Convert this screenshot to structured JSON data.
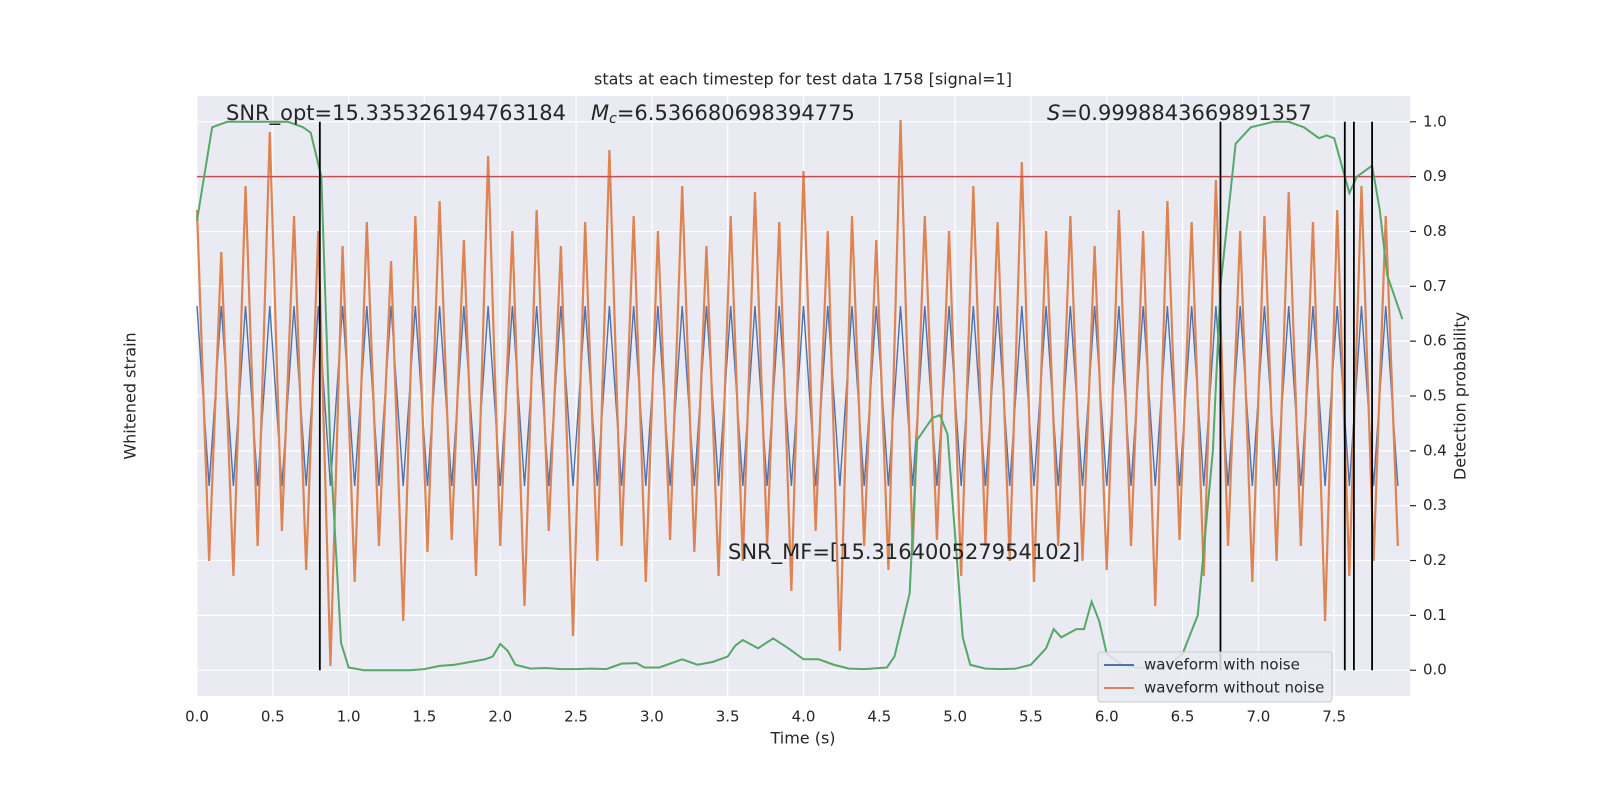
{
  "chart_data": {
    "type": "line",
    "title": "stats at each timestep for test data 1758 [signal=1]",
    "xlabel": "Time (s)",
    "ylabel": "Whitened strain",
    "y2label": "Detection probability",
    "annotations": [
      {
        "text": "SNR_opt=15.335326194763184"
      },
      {
        "symbol": "M",
        "subscript": "c",
        "text": "=6.536680698394775"
      },
      {
        "symbol": "S",
        "text": "=0.9998843669891357"
      },
      {
        "text": "SNR_MF=[15.316400527954102]"
      }
    ],
    "xlim": [
      0,
      8
    ],
    "xticks": [
      {
        "value": 0,
        "label": "0.0"
      },
      0.5,
      {
        "value": 1,
        "label": "1.0"
      },
      1.5,
      {
        "value": 2,
        "label": "2.0"
      },
      2.5,
      {
        "value": 3,
        "label": "3.0"
      },
      3.5,
      {
        "value": 4,
        "label": "4.0"
      },
      4.5,
      {
        "value": 5,
        "label": "5.0"
      },
      5.5,
      {
        "value": 6,
        "label": "6.0"
      },
      6.5,
      {
        "value": 7,
        "label": "7.0"
      },
      7.5
    ],
    "ylim": [
      -1,
      1
    ],
    "y2lim": [
      -0.047,
      1.047
    ],
    "y2ticks": [
      {
        "value": 0,
        "label": "0.0"
      },
      0.1,
      0.2,
      0.3,
      0.4,
      0.5,
      0.6,
      0.7,
      0.8,
      0.9,
      {
        "value": 1,
        "label": "1.0"
      }
    ],
    "grid": true,
    "legend": "lower right",
    "waveform_x": [
      0,
      0.08,
      0.16,
      0.24,
      0.32,
      0.4,
      0.48,
      0.56,
      0.64,
      0.72,
      0.8,
      0.88,
      0.96,
      1.04,
      1.12,
      1.2,
      1.28,
      1.36,
      1.44,
      1.52,
      1.6,
      1.68,
      1.76,
      1.84,
      1.92,
      2,
      2.08,
      2.16,
      2.24,
      2.32,
      2.4,
      2.48,
      2.56,
      2.64,
      2.72,
      2.8,
      2.88,
      2.96,
      3.04,
      3.12,
      3.2,
      3.28,
      3.36,
      3.44,
      3.52,
      3.6,
      3.68,
      3.76,
      3.84,
      3.92,
      4,
      4.08,
      4.16,
      4.24,
      4.32,
      4.4,
      4.48,
      4.56,
      4.64,
      4.72,
      4.8,
      4.88,
      4.96,
      5.04,
      5.12,
      5.2,
      5.28,
      5.36,
      5.44,
      5.52,
      5.6,
      5.68,
      5.76,
      5.84,
      5.92,
      6,
      6.08,
      6.16,
      6.24,
      6.32,
      6.4,
      6.48,
      6.56,
      6.64,
      6.72,
      6.8,
      6.88,
      6.96,
      7.04,
      7.12,
      7.2,
      7.28,
      7.36,
      7.44,
      7.52,
      7.6,
      7.68,
      7.76,
      7.84,
      7.92
    ],
    "series": [
      {
        "name": "waveform with noise",
        "color": "#4c72b0",
        "values": [
          0.3,
          -0.3,
          0.3,
          -0.3,
          0.3,
          -0.3,
          0.3,
          -0.3,
          0.3,
          -0.3,
          0.3,
          -0.3,
          0.3,
          -0.3,
          0.3,
          -0.3,
          0.3,
          -0.3,
          0.3,
          -0.3,
          0.3,
          -0.3,
          0.3,
          -0.3,
          0.3,
          -0.3,
          0.3,
          -0.3,
          0.3,
          -0.3,
          0.3,
          -0.3,
          0.3,
          -0.3,
          0.3,
          -0.3,
          0.3,
          -0.3,
          0.3,
          -0.3,
          0.3,
          -0.3,
          0.3,
          -0.3,
          0.3,
          -0.3,
          0.3,
          -0.3,
          0.3,
          -0.3,
          0.3,
          -0.3,
          0.3,
          -0.3,
          0.3,
          -0.3,
          0.3,
          -0.3,
          0.3,
          -0.3,
          0.3,
          -0.3,
          0.3,
          -0.3,
          0.3,
          -0.3,
          0.3,
          -0.3,
          0.3,
          -0.3,
          0.3,
          -0.3,
          0.3,
          -0.3,
          0.3,
          -0.3,
          0.3,
          -0.3,
          0.3,
          -0.3,
          0.3,
          -0.3,
          0.3,
          -0.3,
          0.3,
          -0.3,
          0.3,
          -0.3,
          0.3,
          -0.3,
          0.3,
          -0.3,
          0.3,
          -0.3,
          0.3,
          -0.3,
          0.3,
          -0.3,
          0.3,
          -0.3
        ]
      },
      {
        "name": "waveform without noise",
        "color": "#dd8452",
        "values": [
          0.62,
          -0.55,
          0.48,
          -0.6,
          0.7,
          -0.5,
          0.88,
          -0.45,
          0.6,
          -0.58,
          0.55,
          -0.9,
          0.5,
          -0.62,
          0.58,
          -0.5,
          0.45,
          -0.75,
          0.6,
          -0.52,
          0.65,
          -0.48,
          0.52,
          -0.6,
          0.8,
          -0.5,
          0.55,
          -0.7,
          0.62,
          -0.45,
          0.5,
          -0.8,
          0.58,
          -0.55,
          0.82,
          -0.5,
          0.6,
          -0.62,
          0.55,
          -0.48,
          0.7,
          -0.52,
          0.5,
          -0.6,
          0.6,
          -0.55,
          0.68,
          -0.5,
          0.58,
          -0.65,
          0.75,
          -0.45,
          0.55,
          -0.85,
          0.6,
          -0.5,
          0.52,
          -0.58,
          0.92,
          -0.52,
          0.6,
          -0.48,
          0.55,
          -0.6,
          0.7,
          -0.5,
          0.58,
          -0.55,
          0.78,
          -0.62,
          0.55,
          -0.5,
          0.6,
          -0.55,
          0.5,
          -0.58,
          0.62,
          -0.5,
          0.55,
          -0.7,
          0.65,
          -0.48,
          0.58,
          -0.6,
          0.72,
          -0.5,
          0.55,
          -0.62,
          0.6,
          -0.55,
          0.68,
          -0.5,
          0.58,
          -0.75,
          0.62,
          -0.6,
          0.7,
          -0.55,
          0.6,
          -0.5
        ]
      }
    ],
    "probability": {
      "color": "#55a868",
      "axis": "y2",
      "x": [
        0,
        0.1,
        0.2,
        0.3,
        0.4,
        0.5,
        0.6,
        0.7,
        0.75,
        0.82,
        0.88,
        0.95,
        1,
        1.1,
        1.2,
        1.3,
        1.4,
        1.5,
        1.6,
        1.7,
        1.8,
        1.9,
        1.95,
        2,
        2.05,
        2.1,
        2.2,
        2.3,
        2.4,
        2.5,
        2.6,
        2.7,
        2.8,
        2.9,
        2.95,
        3.05,
        3.2,
        3.3,
        3.4,
        3.5,
        3.55,
        3.6,
        3.7,
        3.8,
        3.9,
        4,
        4.1,
        4.2,
        4.3,
        4.4,
        4.55,
        4.6,
        4.7,
        4.75,
        4.8,
        4.85,
        4.9,
        4.95,
        5.05,
        5.1,
        5.2,
        5.3,
        5.4,
        5.5,
        5.6,
        5.65,
        5.7,
        5.8,
        5.85,
        5.9,
        5.95,
        6,
        6.1,
        6.2,
        6.3,
        6.4,
        6.5,
        6.6,
        6.7,
        6.75,
        6.85,
        6.95,
        7.1,
        7.2,
        7.3,
        7.4,
        7.45,
        7.5,
        7.55,
        7.6,
        7.65,
        7.75,
        7.8,
        7.85,
        7.9,
        7.95
      ],
      "values": [
        0.82,
        0.99,
        1,
        1,
        1,
        1,
        1,
        0.99,
        0.98,
        0.9,
        0.4,
        0.05,
        0.005,
        0,
        0,
        0,
        0,
        0.002,
        0.008,
        0.01,
        0.015,
        0.02,
        0.025,
        0.048,
        0.035,
        0.01,
        0.003,
        0.004,
        0.002,
        0.002,
        0.003,
        0.002,
        0.012,
        0.013,
        0.005,
        0.005,
        0.02,
        0.01,
        0.015,
        0.025,
        0.045,
        0.055,
        0.04,
        0.058,
        0.04,
        0.02,
        0.02,
        0.01,
        0.003,
        0.002,
        0.005,
        0.025,
        0.14,
        0.42,
        0.44,
        0.46,
        0.465,
        0.43,
        0.06,
        0.01,
        0.003,
        0.002,
        0.003,
        0.01,
        0.04,
        0.075,
        0.06,
        0.075,
        0.075,
        0.125,
        0.09,
        0.03,
        0.01,
        0.005,
        0.004,
        0.008,
        0.03,
        0.1,
        0.4,
        0.7,
        0.96,
        0.99,
        1,
        1,
        0.99,
        0.97,
        0.975,
        0.97,
        0.92,
        0.87,
        0.9,
        0.92,
        0.84,
        0.72,
        0.68,
        0.64
      ]
    },
    "threshold": {
      "value": 0.9,
      "color": "#c44e52",
      "axis": "y2"
    },
    "detections": {
      "x": [
        0.81,
        6.75,
        7.57,
        7.63,
        7.75
      ],
      "color": "#000000"
    }
  }
}
